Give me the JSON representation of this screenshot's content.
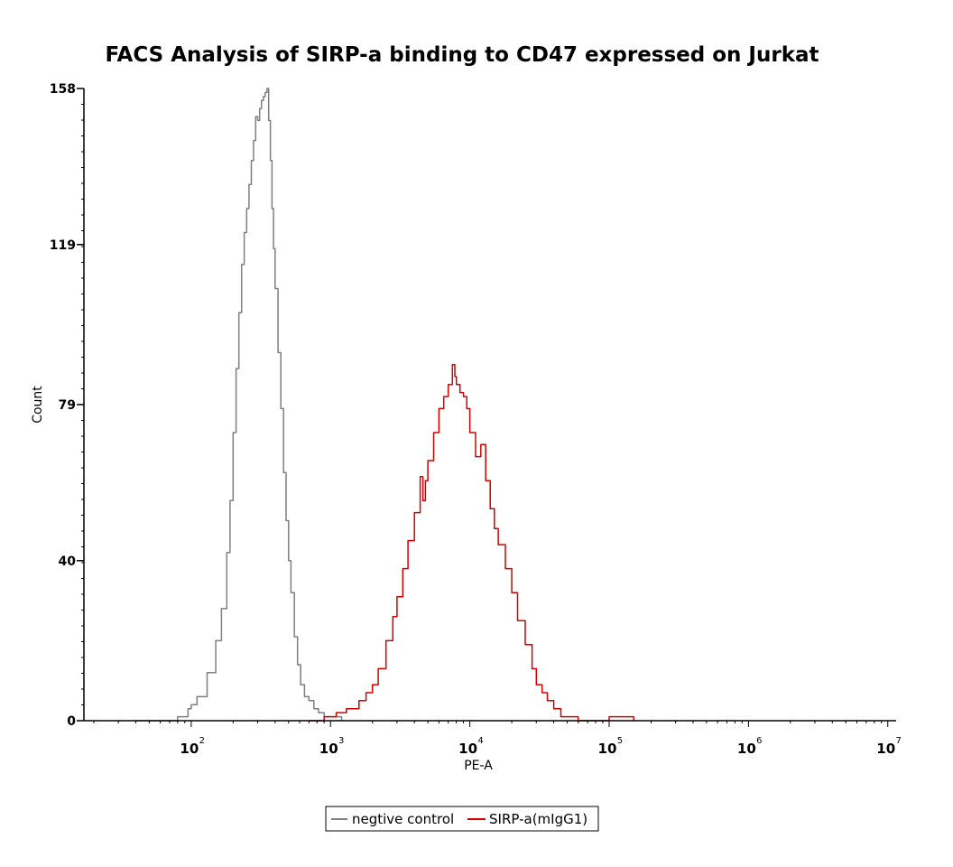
{
  "chart_data": {
    "type": "line",
    "title": "FACS Analysis of SIRP-a binding to CD47 expressed on Jurkat",
    "xlabel": "PE-A",
    "ylabel": "Count",
    "xscale": "log",
    "xlim_exp": [
      1.23,
      7.06
    ],
    "ylim": [
      0,
      158
    ],
    "y_ticks": [
      0,
      40,
      79,
      119,
      158
    ],
    "x_ticks": [
      {
        "base": "10",
        "exp": "2",
        "value": 100
      },
      {
        "base": "10",
        "exp": "3",
        "value": 1000
      },
      {
        "base": "10",
        "exp": "4",
        "value": 10000
      },
      {
        "base": "10",
        "exp": "5",
        "value": 100000
      },
      {
        "base": "10",
        "exp": "6",
        "value": 1000000
      },
      {
        "base": "10",
        "exp": "7",
        "value": 10000000
      }
    ],
    "grid": false,
    "legend_position": "bottom-center",
    "series": [
      {
        "name": "negtive control",
        "color": "#7f7f7f",
        "x": [
          40,
          80,
          95,
          100,
          110,
          130,
          150,
          165,
          180,
          190,
          200,
          210,
          220,
          230,
          240,
          250,
          260,
          270,
          280,
          290,
          300,
          310,
          320,
          330,
          340,
          350,
          360,
          370,
          380,
          390,
          400,
          420,
          440,
          460,
          480,
          500,
          520,
          550,
          580,
          610,
          650,
          700,
          760,
          820,
          900,
          1000,
          1200
        ],
        "y": [
          0,
          1,
          3,
          4,
          6,
          12,
          20,
          28,
          42,
          55,
          72,
          88,
          102,
          114,
          122,
          128,
          134,
          140,
          145,
          151,
          150,
          153,
          155,
          156,
          157,
          158,
          150,
          140,
          128,
          118,
          108,
          92,
          78,
          62,
          50,
          40,
          32,
          21,
          14,
          9,
          6,
          5,
          3,
          2,
          1,
          1,
          0
        ]
      },
      {
        "name": "SIRP-a(mIgG1)",
        "color": "#d40000",
        "x": [
          700,
          900,
          1100,
          1300,
          1600,
          1800,
          2000,
          2200,
          2500,
          2800,
          3000,
          3300,
          3600,
          4000,
          4400,
          4600,
          4800,
          5000,
          5500,
          6000,
          6500,
          7000,
          7500,
          7800,
          8000,
          8500,
          9000,
          9500,
          10000,
          11000,
          12000,
          13000,
          14000,
          15000,
          16000,
          18000,
          20000,
          22000,
          25000,
          28000,
          30000,
          33000,
          36000,
          40000,
          45000,
          50000,
          60000,
          70000,
          100000,
          150000
        ],
        "y": [
          0,
          1,
          2,
          3,
          5,
          7,
          9,
          13,
          20,
          26,
          31,
          38,
          45,
          52,
          61,
          55,
          60,
          65,
          72,
          78,
          81,
          84,
          89,
          86,
          84,
          82,
          81,
          78,
          72,
          66,
          69,
          60,
          53,
          48,
          44,
          38,
          32,
          25,
          19,
          13,
          9,
          7,
          5,
          3,
          1,
          1,
          0,
          0,
          1,
          0
        ]
      }
    ]
  }
}
